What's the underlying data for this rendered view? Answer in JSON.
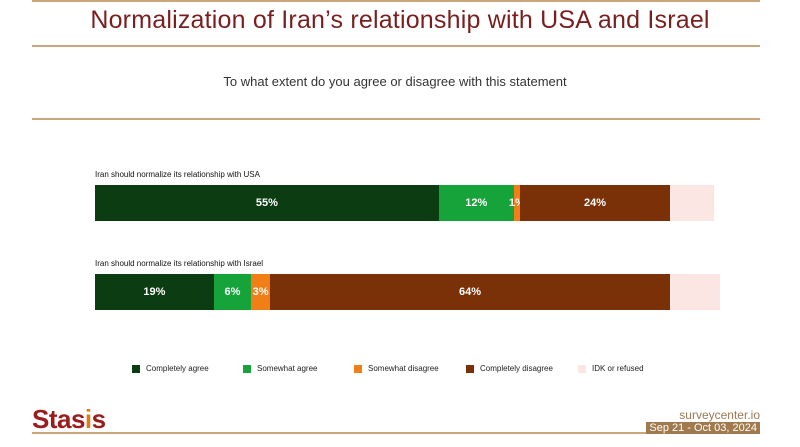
{
  "header": {
    "title": "Normalization of Iran’s relationship with USA and Israel",
    "subtitle": "To what extent do you agree or disagree with this statement"
  },
  "colors": {
    "completely_agree": "#0c3d12",
    "somewhat_agree": "#16a33a",
    "somewhat_disagree": "#f07f18",
    "completely_disagree": "#7a3108",
    "idk": "#fbe6e4",
    "accent_rule": "#c9a77a",
    "title": "#7a1f1f"
  },
  "chart_data": {
    "type": "bar",
    "orientation": "horizontal-stacked",
    "categories": [
      "Iran should normalize its relationship with USA",
      "Iran should normalize its relationship with Israel"
    ],
    "series": [
      {
        "name": "Completely agree",
        "values": [
          55,
          19
        ],
        "labels": [
          "55%",
          "19%"
        ]
      },
      {
        "name": "Somewhat agree",
        "values": [
          12,
          6
        ],
        "labels": [
          "12%",
          "6%"
        ]
      },
      {
        "name": "Somewhat disagree",
        "values": [
          1,
          3
        ],
        "labels": [
          "1%",
          "3%"
        ]
      },
      {
        "name": "Completely disagree",
        "values": [
          24,
          64
        ],
        "labels": [
          "24%",
          "64%"
        ]
      },
      {
        "name": "IDK or refused",
        "values": [
          7,
          8
        ],
        "labels": [
          "",
          ""
        ]
      }
    ],
    "xlim": [
      0,
      100
    ],
    "legend_position": "bottom"
  },
  "footer": {
    "logo_main": "Stas",
    "logo_dot": "i",
    "logo_end": "s",
    "site": "surveycenter.io",
    "dates": "Sep 21 - Oct 03, 2024"
  }
}
